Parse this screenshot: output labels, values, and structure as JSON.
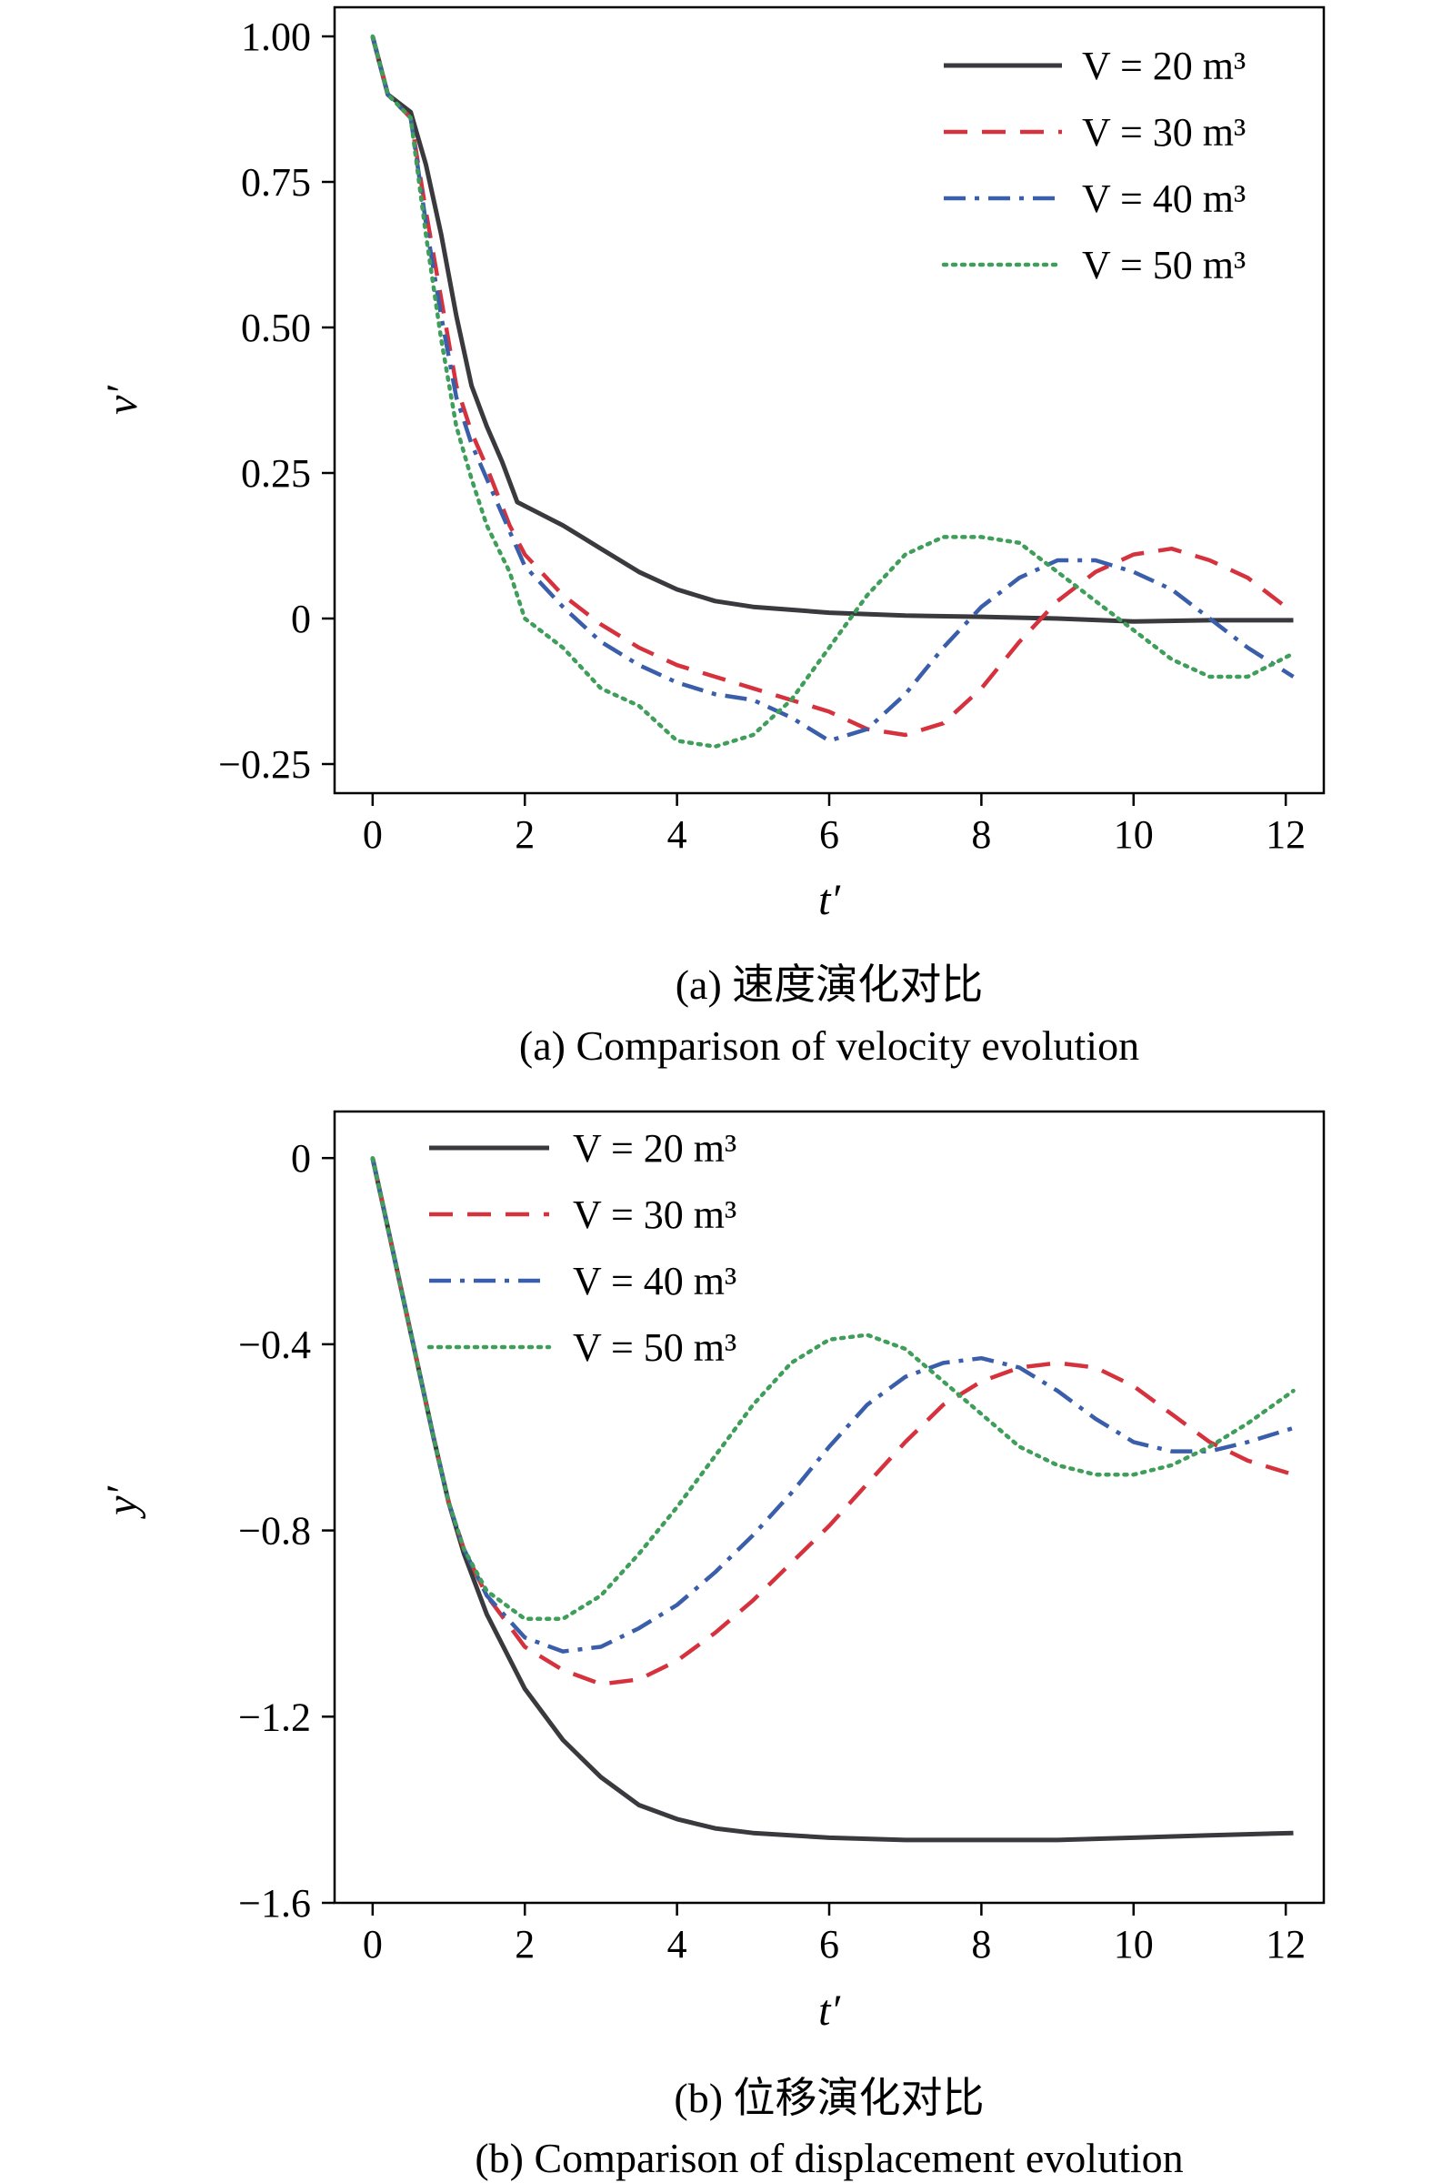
{
  "colors": {
    "V20": "#3a3a3e",
    "V30": "#d6323e",
    "V40": "#3a5eaa",
    "V50": "#3f9e5a"
  },
  "chart_data": [
    {
      "type": "line",
      "xlabel": "t′",
      "ylabel": "v′",
      "xlim": [
        -0.5,
        12.5
      ],
      "ylim": [
        -0.3,
        1.05
      ],
      "xticks": [
        0,
        2,
        4,
        6,
        8,
        10,
        12
      ],
      "xtick_labels": [
        "0",
        "2",
        "4",
        "6",
        "8",
        "10",
        "12"
      ],
      "yticks": [
        -0.25,
        0,
        0.25,
        0.5,
        0.75,
        1.0
      ],
      "ytick_labels": [
        "−0.25",
        "0",
        "0.25",
        "0.50",
        "0.75",
        "1.00"
      ],
      "legend_position": "top-right",
      "caption_cn": "(a) 速度演化对比",
      "caption_en": "(a) Comparison of velocity evolution",
      "series": [
        {
          "name": "V = 20 m³",
          "key": "V20",
          "style": "solid",
          "x": [
            0,
            0.2,
            0.5,
            0.7,
            0.9,
            1.1,
            1.3,
            1.5,
            1.7,
            1.9,
            2.2,
            2.5,
            3.0,
            3.5,
            4.0,
            4.5,
            5.0,
            5.5,
            6.0,
            7.0,
            8.0,
            9.0,
            10.0,
            11.0,
            12.1
          ],
          "y": [
            1.0,
            0.9,
            0.87,
            0.78,
            0.66,
            0.52,
            0.4,
            0.33,
            0.27,
            0.2,
            0.18,
            0.16,
            0.12,
            0.08,
            0.05,
            0.03,
            0.02,
            0.015,
            0.01,
            0.005,
            0.003,
            0.0,
            -0.005,
            -0.003,
            -0.003
          ]
        },
        {
          "name": "V = 30 m³",
          "key": "V30",
          "style": "dash",
          "x": [
            0,
            0.2,
            0.5,
            0.7,
            0.9,
            1.1,
            1.3,
            1.5,
            1.8,
            2.0,
            2.5,
            3.0,
            3.5,
            4.0,
            4.5,
            5.0,
            5.5,
            6.0,
            6.5,
            7.0,
            7.5,
            8.0,
            8.5,
            9.0,
            9.5,
            10.0,
            10.5,
            11.0,
            11.5,
            12.1
          ],
          "y": [
            1.0,
            0.9,
            0.86,
            0.7,
            0.55,
            0.4,
            0.32,
            0.26,
            0.16,
            0.11,
            0.04,
            -0.01,
            -0.05,
            -0.08,
            -0.1,
            -0.12,
            -0.14,
            -0.16,
            -0.19,
            -0.2,
            -0.18,
            -0.12,
            -0.04,
            0.03,
            0.08,
            0.11,
            0.12,
            0.1,
            0.07,
            0.01
          ]
        },
        {
          "name": "V = 40 m³",
          "key": "V40",
          "style": "dashdot",
          "x": [
            0,
            0.2,
            0.5,
            0.7,
            0.9,
            1.1,
            1.3,
            1.5,
            1.8,
            2.0,
            2.5,
            3.0,
            3.5,
            4.0,
            4.5,
            5.0,
            5.5,
            6.0,
            6.5,
            7.0,
            7.5,
            8.0,
            8.5,
            9.0,
            9.5,
            10.0,
            10.5,
            11.0,
            11.5,
            12.1
          ],
          "y": [
            1.0,
            0.9,
            0.86,
            0.68,
            0.52,
            0.38,
            0.3,
            0.24,
            0.15,
            0.09,
            0.02,
            -0.04,
            -0.08,
            -0.11,
            -0.13,
            -0.14,
            -0.17,
            -0.21,
            -0.19,
            -0.13,
            -0.05,
            0.02,
            0.07,
            0.1,
            0.1,
            0.08,
            0.05,
            0.0,
            -0.05,
            -0.1
          ]
        },
        {
          "name": "V = 50 m³",
          "key": "V50",
          "style": "dot",
          "x": [
            0,
            0.2,
            0.5,
            0.7,
            0.9,
            1.1,
            1.3,
            1.5,
            1.8,
            2.0,
            2.5,
            3.0,
            3.5,
            4.0,
            4.5,
            5.0,
            5.5,
            6.0,
            6.5,
            7.0,
            7.5,
            8.0,
            8.5,
            9.0,
            9.5,
            10.0,
            10.5,
            11.0,
            11.5,
            12.1
          ],
          "y": [
            1.0,
            0.9,
            0.86,
            0.66,
            0.48,
            0.33,
            0.24,
            0.16,
            0.08,
            0.0,
            -0.05,
            -0.12,
            -0.15,
            -0.21,
            -0.22,
            -0.2,
            -0.14,
            -0.05,
            0.04,
            0.11,
            0.14,
            0.14,
            0.13,
            0.08,
            0.03,
            -0.02,
            -0.07,
            -0.1,
            -0.1,
            -0.06
          ]
        }
      ]
    },
    {
      "type": "line",
      "xlabel": "t′",
      "ylabel": "y′",
      "xlim": [
        -0.5,
        12.5
      ],
      "ylim": [
        -1.6,
        0.1
      ],
      "xticks": [
        0,
        2,
        4,
        6,
        8,
        10,
        12
      ],
      "xtick_labels": [
        "0",
        "2",
        "4",
        "6",
        "8",
        "10",
        "12"
      ],
      "yticks": [
        -1.6,
        -1.2,
        -0.8,
        -0.4,
        0
      ],
      "ytick_labels": [
        "−1.6",
        "−1.2",
        "−0.8",
        "−0.4",
        "0"
      ],
      "legend_position": "top-left",
      "caption_cn": "(b) 位移演化对比",
      "caption_en": "(b) Comparison of displacement evolution",
      "series": [
        {
          "name": "V = 20 m³",
          "key": "V20",
          "style": "solid",
          "x": [
            0,
            0.2,
            0.4,
            0.6,
            0.8,
            1.0,
            1.2,
            1.5,
            2.0,
            2.5,
            3.0,
            3.5,
            4.0,
            4.5,
            5.0,
            6.0,
            7.0,
            8.0,
            9.0,
            10.0,
            11.0,
            12.1
          ],
          "y": [
            0,
            -0.15,
            -0.3,
            -0.45,
            -0.6,
            -0.74,
            -0.85,
            -0.98,
            -1.14,
            -1.25,
            -1.33,
            -1.39,
            -1.42,
            -1.44,
            -1.45,
            -1.46,
            -1.465,
            -1.465,
            -1.465,
            -1.46,
            -1.455,
            -1.45
          ]
        },
        {
          "name": "V = 30 m³",
          "key": "V30",
          "style": "dash",
          "x": [
            0,
            0.2,
            0.4,
            0.6,
            0.8,
            1.0,
            1.2,
            1.5,
            2.0,
            2.5,
            3.0,
            3.5,
            4.0,
            4.5,
            5.0,
            5.5,
            6.0,
            6.5,
            7.0,
            7.5,
            8.0,
            8.5,
            9.0,
            9.5,
            10.0,
            10.5,
            11.0,
            11.5,
            12.1
          ],
          "y": [
            0,
            -0.15,
            -0.3,
            -0.45,
            -0.6,
            -0.74,
            -0.84,
            -0.94,
            -1.05,
            -1.1,
            -1.13,
            -1.12,
            -1.08,
            -1.02,
            -0.95,
            -0.87,
            -0.79,
            -0.7,
            -0.61,
            -0.53,
            -0.48,
            -0.45,
            -0.44,
            -0.45,
            -0.49,
            -0.55,
            -0.61,
            -0.65,
            -0.68
          ]
        },
        {
          "name": "V = 40 m³",
          "key": "V40",
          "style": "dashdot",
          "x": [
            0,
            0.2,
            0.4,
            0.6,
            0.8,
            1.0,
            1.2,
            1.5,
            2.0,
            2.5,
            3.0,
            3.5,
            4.0,
            4.5,
            5.0,
            5.5,
            6.0,
            6.5,
            7.0,
            7.5,
            8.0,
            8.5,
            9.0,
            9.5,
            10.0,
            10.5,
            11.0,
            11.5,
            12.1
          ],
          "y": [
            0,
            -0.15,
            -0.3,
            -0.45,
            -0.6,
            -0.74,
            -0.84,
            -0.94,
            -1.03,
            -1.06,
            -1.05,
            -1.01,
            -0.96,
            -0.89,
            -0.81,
            -0.72,
            -0.62,
            -0.53,
            -0.47,
            -0.44,
            -0.43,
            -0.45,
            -0.5,
            -0.56,
            -0.61,
            -0.63,
            -0.63,
            -0.61,
            -0.58
          ]
        },
        {
          "name": "V = 50 m³",
          "key": "V50",
          "style": "dot",
          "x": [
            0,
            0.2,
            0.4,
            0.6,
            0.8,
            1.0,
            1.2,
            1.5,
            2.0,
            2.5,
            3.0,
            3.5,
            4.0,
            4.5,
            5.0,
            5.5,
            6.0,
            6.5,
            7.0,
            7.5,
            8.0,
            8.5,
            9.0,
            9.5,
            10.0,
            10.5,
            11.0,
            11.5,
            12.1
          ],
          "y": [
            0,
            -0.15,
            -0.3,
            -0.45,
            -0.6,
            -0.74,
            -0.84,
            -0.93,
            -0.99,
            -0.99,
            -0.94,
            -0.85,
            -0.75,
            -0.64,
            -0.53,
            -0.44,
            -0.39,
            -0.38,
            -0.41,
            -0.48,
            -0.55,
            -0.62,
            -0.66,
            -0.68,
            -0.68,
            -0.66,
            -0.62,
            -0.57,
            -0.5
          ]
        }
      ]
    }
  ]
}
